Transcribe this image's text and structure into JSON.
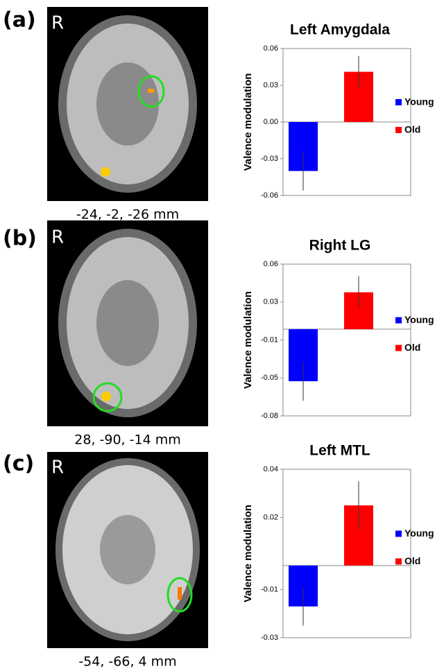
{
  "panels": [
    {
      "label": "(a)",
      "orientation": "R",
      "coordinates": "-24, -2, -26 mm"
    },
    {
      "label": "(b)",
      "orientation": "R",
      "coordinates": "28, -90, -14 mm"
    },
    {
      "label": "(c)",
      "orientation": "R",
      "coordinates": "-54, -66, 4 mm"
    }
  ],
  "chart_data": [
    {
      "type": "bar",
      "title": "Left Amygdala",
      "y_label": "Valence modulation",
      "categories": [
        null
      ],
      "series": [
        {
          "name": "Young",
          "color": "#0000ff",
          "values": [
            -0.04
          ],
          "errors": [
            0.016
          ]
        },
        {
          "name": "Old",
          "color": "#ff0000",
          "values": [
            0.041
          ],
          "errors": [
            0.013
          ]
        }
      ],
      "ylim": [
        -0.06,
        0.06
      ],
      "yticks": [
        -0.06,
        -0.03,
        {
          "value": 0,
          "label": "0.00"
        },
        0.03,
        0.06
      ]
    },
    {
      "type": "bar",
      "title": "Right LG",
      "y_label": "Valence modulation",
      "categories": [
        null
      ],
      "series": [
        {
          "name": "Young",
          "color": "#0000ff",
          "values": [
            -0.048
          ],
          "errors": [
            0.018
          ]
        },
        {
          "name": "Old",
          "color": "#ff0000",
          "values": [
            0.034
          ],
          "errors": [
            0.015
          ]
        }
      ],
      "ylim": [
        -0.08,
        0.06
      ],
      "yticks": [
        -0.08,
        {
          "value": -0.045,
          "label": "-0.05"
        },
        -0.01,
        {
          "value": 0.025,
          "label": "0.03"
        },
        0.06
      ]
    },
    {
      "type": "bar",
      "title": "Left MTL",
      "y_label": "Valence modulation",
      "categories": [
        null
      ],
      "series": [
        {
          "name": "Young",
          "color": "#0000ff",
          "values": [
            -0.017
          ],
          "errors": [
            0.008
          ]
        },
        {
          "name": "Old",
          "color": "#ff0000",
          "values": [
            0.025
          ],
          "errors": [
            0.01
          ]
        }
      ],
      "ylim": [
        -0.03,
        0.04
      ],
      "yticks": [
        -0.03,
        -0.01,
        0.02,
        0.04
      ]
    }
  ]
}
